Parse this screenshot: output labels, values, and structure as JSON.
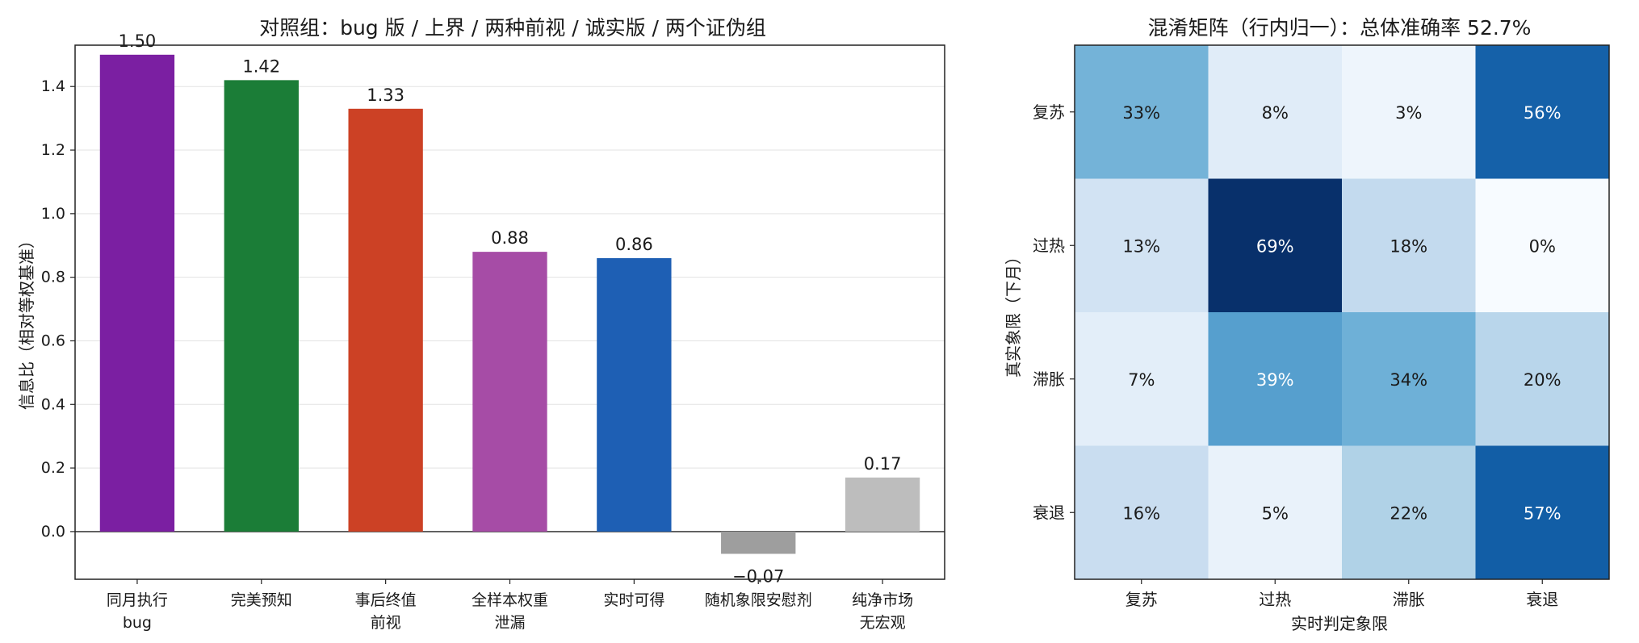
{
  "chart_data": [
    {
      "type": "bar",
      "title": "对照组：bug 版 / 上界 / 两种前视 / 诚实版 / 两个证伪组",
      "xlabel": "",
      "ylabel": "信息比（相对等权基准）",
      "ylim": [
        -0.15,
        1.53
      ],
      "yticks": [
        "0.0",
        "0.2",
        "0.4",
        "0.6",
        "0.8",
        "1.0",
        "1.2",
        "1.4"
      ],
      "grid": "y",
      "categories": [
        [
          "同月执行",
          "bug"
        ],
        [
          "完美预知"
        ],
        [
          "事后终值",
          "前视"
        ],
        [
          "全样本权重",
          "泄漏"
        ],
        [
          "实时可得"
        ],
        [
          "随机象限安慰剂"
        ],
        [
          "纯净市场",
          "无宏观"
        ]
      ],
      "values": [
        1.5,
        1.42,
        1.33,
        0.88,
        0.86,
        -0.07,
        0.17
      ],
      "value_labels": [
        "1.50",
        "1.42",
        "1.33",
        "0.88",
        "0.86",
        "−0.07",
        "0.17"
      ],
      "colors": [
        "#7b1fa2",
        "#1b7d37",
        "#cc4125",
        "#a64ca6",
        "#1e5fb4",
        "#9e9e9e",
        "#bdbdbd"
      ]
    },
    {
      "type": "heatmap",
      "title": "混淆矩阵（行内归一）：总体准确率 52.7%",
      "xlabel": "实时判定象限",
      "ylabel": "真实象限（下月）",
      "x": [
        "复苏",
        "过热",
        "滞胀",
        "衰退"
      ],
      "y": [
        "复苏",
        "过热",
        "滞胀",
        "衰退"
      ],
      "values": [
        [
          0.33,
          0.08,
          0.03,
          0.56
        ],
        [
          0.13,
          0.69,
          0.18,
          0.0
        ],
        [
          0.07,
          0.39,
          0.34,
          0.2
        ],
        [
          0.16,
          0.05,
          0.22,
          0.57
        ]
      ],
      "cell_labels": [
        [
          "33%",
          "8%",
          "3%",
          "56%"
        ],
        [
          "13%",
          "69%",
          "18%",
          "0%"
        ],
        [
          "7%",
          "39%",
          "34%",
          "20%"
        ],
        [
          "16%",
          "5%",
          "22%",
          "57%"
        ]
      ],
      "colormap": "Blues"
    }
  ]
}
